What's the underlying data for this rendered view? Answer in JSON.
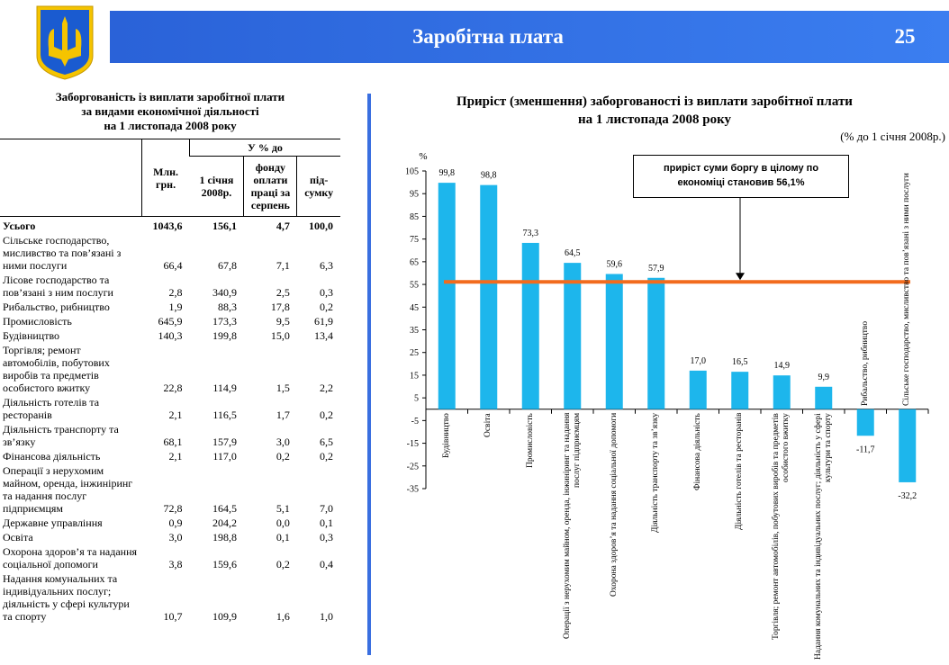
{
  "header": {
    "title": "Заробітна плата",
    "page": "25"
  },
  "table": {
    "title_lines": [
      "Заборгованість із виплати заробітної плати",
      "за видами економічної діяльності",
      "на 1 листопада 2008 року"
    ],
    "columns": {
      "unit": "Млн. грн.",
      "group": "У % до",
      "sub": [
        "1 січня 2008р.",
        "фонду оплати праці за серпень",
        "під-сумку"
      ]
    },
    "rows": [
      [
        "Усього",
        "1043,6",
        "156,1",
        "4,7",
        "100,0"
      ],
      [
        "Сільське господарство, мисливство та пов’язані з ними послуги",
        "66,4",
        "67,8",
        "7,1",
        "6,3"
      ],
      [
        "Лісове господарство  та пов’язані з ним послуги",
        "2,8",
        "340,9",
        "2,5",
        "0,3"
      ],
      [
        "Рибальство, рибництво",
        "1,9",
        "88,3",
        "17,8",
        "0,2"
      ],
      [
        "Промисловість",
        "645,9",
        "173,3",
        "9,5",
        "61,9"
      ],
      [
        "Будівництво",
        "140,3",
        "199,8",
        "15,0",
        "13,4"
      ],
      [
        "Торгівля; ремонт автомобілів, побутових виробів та предметів особистого вжитку",
        "22,8",
        "114,9",
        "1,5",
        "2,2"
      ],
      [
        "Діяльність готелів та ресторанів",
        "2,1",
        "116,5",
        "1,7",
        "0,2"
      ],
      [
        "Діяльність транспорту та зв’язку",
        "68,1",
        "157,9",
        "3,0",
        "6,5"
      ],
      [
        "Фінансова діяльність",
        "2,1",
        "117,0",
        "0,2",
        "0,2"
      ],
      [
        "Операції з нерухомим майном, оренда, інжиніринг та надання послуг підприємцям",
        "72,8",
        "164,5",
        "5,1",
        "7,0"
      ],
      [
        "Державне управління",
        "0,9",
        "204,2",
        "0,0",
        "0,1"
      ],
      [
        "Освіта",
        "3,0",
        "198,8",
        "0,1",
        "0,3"
      ],
      [
        "Охорона здоров’я та надання соціальної допомоги",
        "3,8",
        "159,6",
        "0,2",
        "0,4"
      ],
      [
        "Надання комунальних та індивідуальних послуг; діяльність у сфері культури та спорту",
        "10,7",
        "109,9",
        "1,6",
        "1,0"
      ]
    ]
  },
  "chart_data": {
    "type": "bar",
    "title_lines": [
      "Приріст (зменшення) заборгованості із виплати заробітної плати",
      "на 1 листопада 2008 року"
    ],
    "subtitle": "(% до 1 січня 2008р.)",
    "y_label": "%",
    "categories": [
      "Будівництво",
      "Освіта",
      "Промисловість",
      "Операції з нерухомим майном, оренда, інжиніринг та надання послуг підприємцям",
      "Охорона здоров’я та надання соціальної допомоги",
      "Діяльність транспорту та зв’язку",
      "Фінансова діяльність",
      "Діяльність готелів та ресторанів",
      "Торгівля; ремонт автомобілів, побутових виробів та предметів особистого вжитку",
      "Надання комунальних та індивідуальних послуг; діяльність у сфері культури та спорту",
      "Рибальство, рибництво",
      "Сільське господарство, мисливство та пов’язані з ними послуги"
    ],
    "values": [
      99.8,
      98.8,
      73.3,
      64.5,
      59.6,
      57.9,
      17.0,
      16.5,
      14.9,
      9.9,
      -11.7,
      -32.2
    ],
    "value_labels": [
      "99,8",
      "98,8",
      "73,3",
      "64,5",
      "59,6",
      "57,9",
      "17,0",
      "16,5",
      "14,9",
      "9,9",
      "-11,7",
      "-32,2"
    ],
    "color": "#1db6ec",
    "ylim": [
      -35,
      105
    ],
    "yticks": [
      -35,
      -25,
      -15,
      -5,
      5,
      15,
      25,
      35,
      45,
      55,
      65,
      75,
      85,
      95,
      105
    ],
    "grid": false,
    "reference_line": {
      "value": 56.1,
      "color": "#f26b1d"
    },
    "annotation": "приріст суми боргу в цілому по економіці становив  56,1%"
  }
}
